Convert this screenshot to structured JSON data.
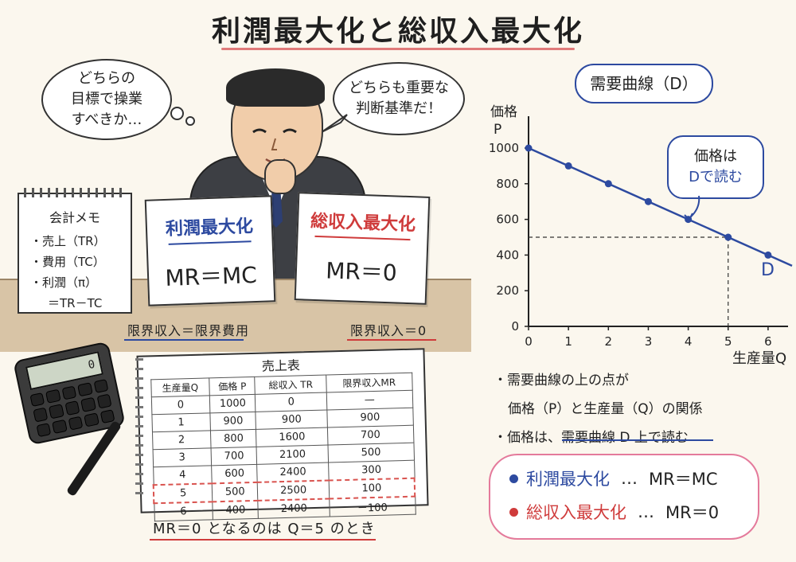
{
  "title": "利潤最大化と総収入最大化",
  "bubbles": {
    "left": [
      "どちらの",
      "目標で操業",
      "すべきか…"
    ],
    "right": [
      "どちらも重要な",
      "判断基準だ！"
    ]
  },
  "memo": {
    "title": "会計メモ",
    "items": [
      "・売上（TR）",
      "・費用（TC）",
      "・利潤（π）",
      "＝TR－TC"
    ]
  },
  "papers": {
    "profit": {
      "head": "利潤最大化",
      "eq": "MR＝MC",
      "caption": "限界収入＝限界費用"
    },
    "revenue": {
      "head": "総収入最大化",
      "eq": "MR＝0",
      "caption": "限界収入＝0"
    }
  },
  "calculator": {
    "display": "0"
  },
  "sales_table": {
    "title": "売上表",
    "headers": [
      "生産量Q",
      "価格 P",
      "総収入 TR",
      "限界収入MR"
    ],
    "rows": [
      [
        "0",
        "1000",
        "0",
        "—"
      ],
      [
        "1",
        "900",
        "900",
        "900"
      ],
      [
        "2",
        "800",
        "1600",
        "700"
      ],
      [
        "3",
        "700",
        "2100",
        "500"
      ],
      [
        "4",
        "600",
        "2400",
        "300"
      ],
      [
        "5",
        "500",
        "2500",
        "100"
      ],
      [
        "6",
        "400",
        "2400",
        "－100"
      ]
    ],
    "highlight_row": 5,
    "caption": "MR＝0 となるのは Q＝5 のとき"
  },
  "chart_data": {
    "type": "line",
    "title": "需要曲線（D）",
    "xlabel": "生産量Q",
    "ylabel_lines": [
      "価格",
      "P"
    ],
    "x": [
      0,
      1,
      2,
      3,
      4,
      5,
      6
    ],
    "y": [
      1000,
      900,
      800,
      700,
      600,
      500,
      400
    ],
    "xlim": [
      0,
      6.5
    ],
    "ylim": [
      0,
      1000
    ],
    "xticks": [
      0,
      1,
      2,
      3,
      4,
      5,
      6
    ],
    "yticks": [
      0,
      200,
      400,
      600,
      800,
      1000
    ],
    "series_label": "D",
    "highlight": {
      "x": 5,
      "y": 500
    },
    "annotation": [
      "価格は",
      "Dで読む"
    ],
    "line_color": "#2d4aa0"
  },
  "notes": [
    "・需要曲線の上の点が",
    "価格（P）と生産量（Q）の関係",
    "・価格は、需要曲線 D 上で読む"
  ],
  "legend": [
    {
      "label": "利潤最大化",
      "sep": "…",
      "eq": "MR＝MC",
      "color": "#2d4aa0"
    },
    {
      "label": "総収入最大化",
      "sep": "…",
      "eq": "MR＝0",
      "color": "#cf3b3b"
    }
  ]
}
